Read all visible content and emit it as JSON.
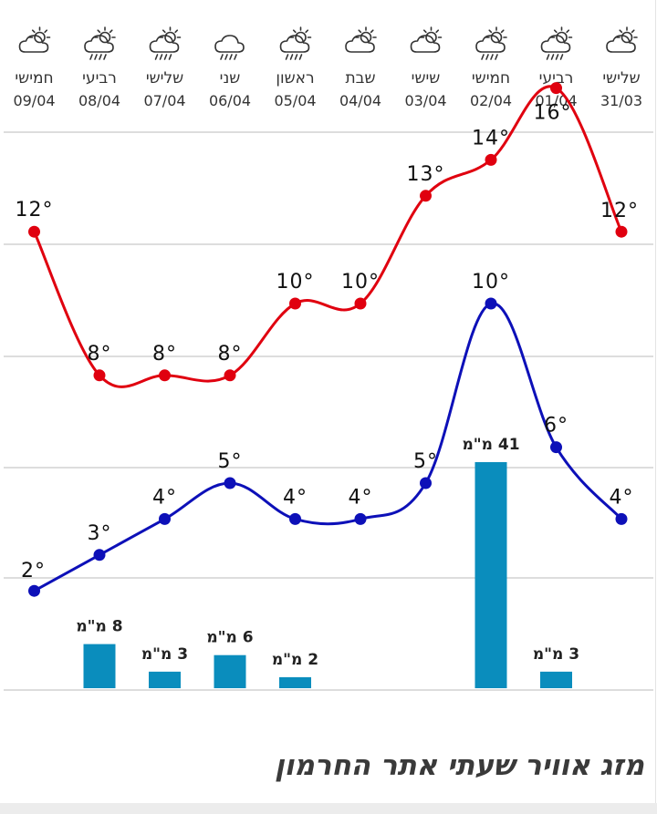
{
  "title": "מזג אוויר שעתי אתר החרמון",
  "days": [
    {
      "name": "שלישי",
      "date": "31/03",
      "icon": "partly-cloudy-icon"
    },
    {
      "name": "רביעי",
      "date": "01/04",
      "icon": "sun-cloud-rain-icon"
    },
    {
      "name": "חמישי",
      "date": "02/04",
      "icon": "sun-cloud-rain-icon"
    },
    {
      "name": "שישי",
      "date": "03/04",
      "icon": "partly-cloudy-icon"
    },
    {
      "name": "שבת",
      "date": "04/04",
      "icon": "partly-cloudy-icon"
    },
    {
      "name": "ראשון",
      "date": "05/04",
      "icon": "sun-cloud-rain-icon"
    },
    {
      "name": "שני",
      "date": "06/04",
      "icon": "cloud-rain-icon"
    },
    {
      "name": "שלישי",
      "date": "07/04",
      "icon": "sun-cloud-rain-icon"
    },
    {
      "name": "רביעי",
      "date": "08/04",
      "icon": "sun-cloud-rain-icon"
    },
    {
      "name": "חמישי",
      "date": "09/04",
      "icon": "partly-cloudy-icon"
    }
  ],
  "colors": {
    "max": "#e0000f",
    "min": "#0d10b8",
    "precip": "#0a8dbd",
    "grid": "#dddddd"
  },
  "chart_data": {
    "type": "line",
    "x": [
      "31/03",
      "01/04",
      "02/04",
      "03/04",
      "04/04",
      "05/04",
      "06/04",
      "07/04",
      "08/04",
      "09/04"
    ],
    "series": [
      {
        "values": [
          12,
          16,
          14,
          13,
          10,
          10,
          8,
          8,
          8,
          12
        ],
        "labels": [
          "12°",
          "16°",
          "14°",
          "13°",
          "10°",
          "10°",
          "8°",
          "8°",
          "8°",
          "12°"
        ]
      },
      {
        "values": [
          4,
          6,
          10,
          5,
          4,
          4,
          5,
          4,
          3,
          2
        ],
        "labels": [
          "4°",
          "6°",
          "10°",
          "5°",
          "4°",
          "4°",
          "5°",
          "4°",
          "3°",
          "2°"
        ]
      },
      {
        "type": "bar",
        "values": [
          0,
          3,
          41,
          0,
          0,
          2,
          6,
          3,
          8,
          0
        ],
        "labels": [
          "",
          "3 מ\"מ",
          "41 מ\"מ",
          "",
          "",
          "2 מ\"מ",
          "6 מ\"מ",
          "3 מ\"מ",
          "8 מ\"מ",
          ""
        ]
      }
    ],
    "grid": true
  }
}
